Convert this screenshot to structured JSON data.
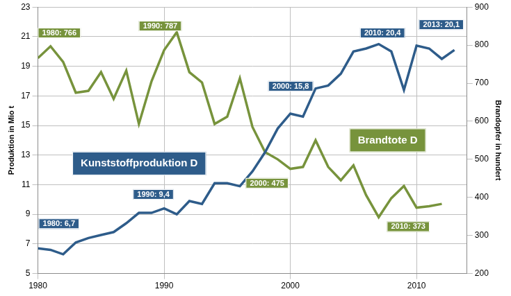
{
  "chart_data": {
    "type": "line",
    "x": [
      1980,
      1981,
      1982,
      1983,
      1984,
      1985,
      1986,
      1987,
      1988,
      1989,
      1990,
      1991,
      1992,
      1993,
      1994,
      1995,
      1996,
      1997,
      1998,
      1999,
      2000,
      2001,
      2002,
      2003,
      2004,
      2005,
      2006,
      2007,
      2008,
      2009,
      2010,
      2011,
      2012,
      2013
    ],
    "series": [
      {
        "name": "Kunststoffproduktion D",
        "color": "#2e5c8a",
        "values": [
          6.7,
          6.6,
          6.3,
          7.1,
          7.4,
          7.6,
          7.8,
          8.4,
          9.1,
          9.1,
          9.4,
          9.0,
          9.9,
          9.7,
          11.1,
          11.1,
          10.9,
          11.9,
          13.2,
          14.8,
          15.8,
          15.6,
          17.5,
          17.7,
          18.5,
          20.0,
          20.2,
          20.5,
          20.0,
          17.4,
          20.4,
          20.2,
          19.5,
          20.1
        ]
      },
      {
        "name": "Brandtote D",
        "color": "#77933c",
        "axis": "y2",
        "values": [
          766,
          797,
          756,
          675,
          680,
          729,
          659,
          733,
          593,
          705,
          787,
          834,
          729,
          702,
          593,
          612,
          713,
          585,
          519,
          500,
          475,
          480,
          550,
          480,
          445,
          484,
          406,
          348,
          398,
          430,
          373,
          377,
          383,
          null
        ]
      }
    ],
    "xlim": [
      1980,
      2014
    ],
    "xticks": [
      1980,
      1990,
      2000,
      2010
    ],
    "ylim": [
      5,
      23
    ],
    "yticks": [
      5,
      7,
      9,
      11,
      13,
      15,
      17,
      19,
      21,
      23
    ],
    "y2lim": [
      200,
      900
    ],
    "y2ticks": [
      200,
      300,
      400,
      500,
      600,
      700,
      800,
      900
    ],
    "y_label": "Produktion in Mio t",
    "y2_label": "Brandopfer in hundert",
    "grid": true,
    "annotations": [
      {
        "text": "1980: 766",
        "color": "#77933c"
      },
      {
        "text": "1990: 787",
        "color": "#77933c"
      },
      {
        "text": "2000: 475",
        "color": "#77933c"
      },
      {
        "text": "2010: 373",
        "color": "#77933c"
      },
      {
        "text": "1980: 6,7",
        "color": "#2e5c8a"
      },
      {
        "text": "1990: 9,4",
        "color": "#2e5c8a"
      },
      {
        "text": "2000: 15,8",
        "color": "#2e5c8a"
      },
      {
        "text": "2010: 20,4",
        "color": "#2e5c8a"
      },
      {
        "text": "2013: 20,1",
        "color": "#2e5c8a"
      }
    ]
  }
}
